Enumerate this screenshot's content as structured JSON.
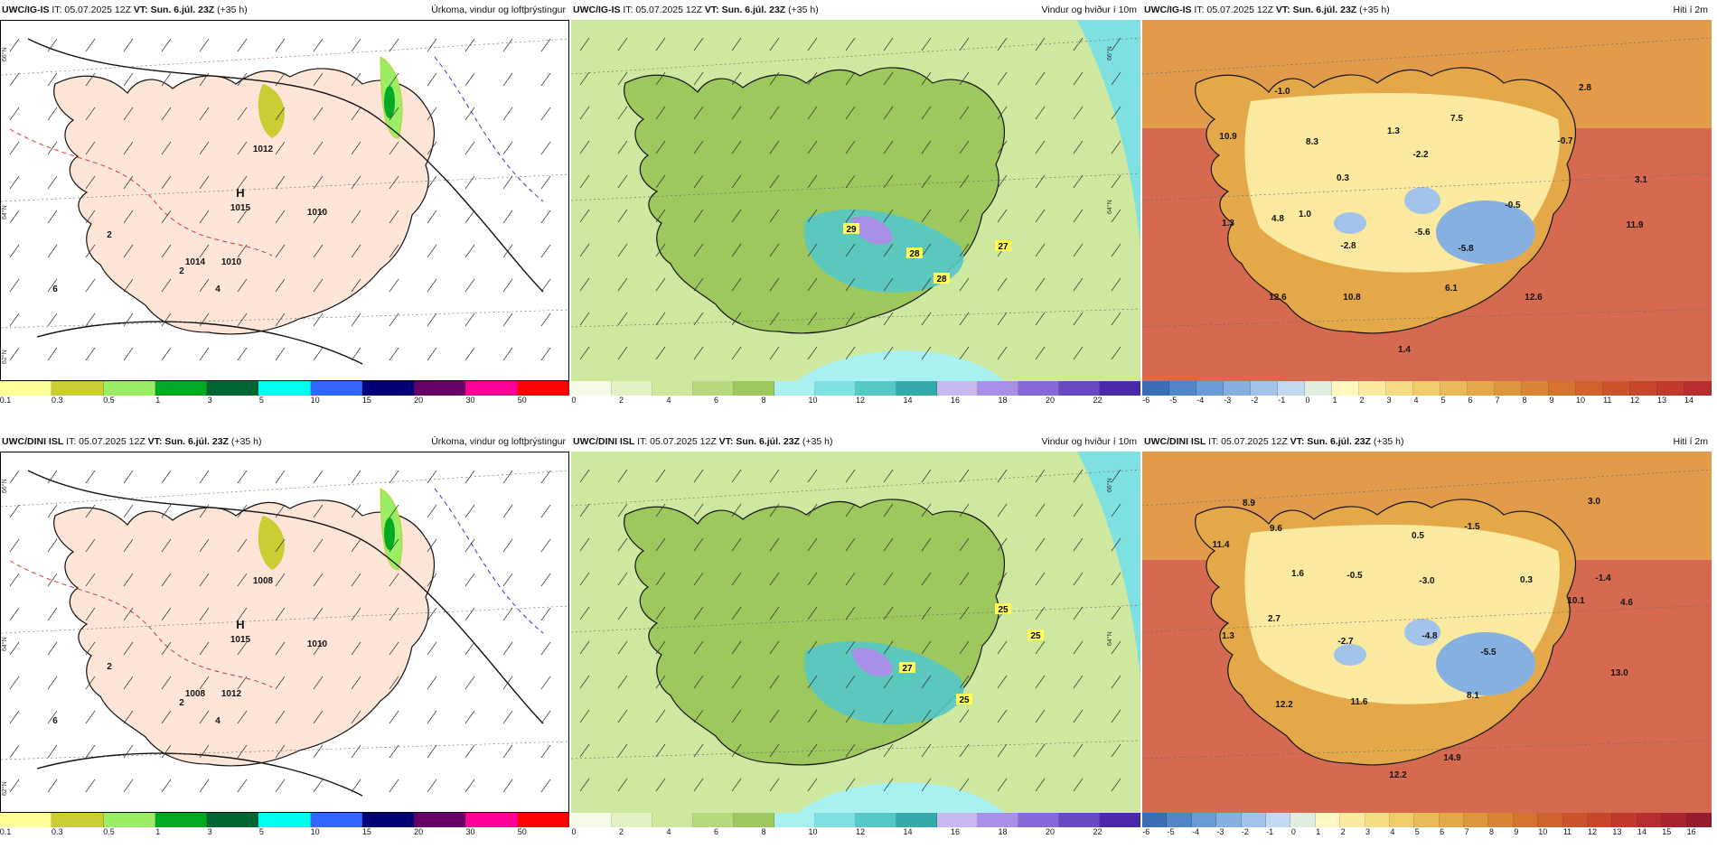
{
  "panels": [
    {
      "model": "UWC/IG-IS",
      "it": "IT: 05.07.2025 12Z",
      "vt_label": "VT:",
      "vt": "Sun. 6.júl. 23Z",
      "lead": "(+35 h)",
      "field": "Úrkoma, vindur og loftþrýstingur",
      "type": "precip",
      "ticks": [
        "0.1",
        "0.3",
        "0.5",
        "1",
        "3",
        "5",
        "10",
        "15",
        "20",
        "30",
        "50"
      ],
      "colors": [
        "#ffff99",
        "#cccc33",
        "#99ee66",
        "#00aa22",
        "#006633",
        "#00ffee",
        "#3366ff",
        "#000077",
        "#660066",
        "#ff0099",
        "#ff0000"
      ],
      "map_labels": [
        "H",
        "1015",
        "1010",
        "1010",
        "1014",
        "1012",
        "2",
        "2",
        "4",
        "6"
      ],
      "grid_labels": [
        "66°N",
        "64°N",
        "62°N"
      ]
    },
    {
      "model": "UWC/IG-IS",
      "it": "IT: 05.07.2025 12Z",
      "vt_label": "VT:",
      "vt": "Sun. 6.júl. 23Z",
      "lead": "(+35 h)",
      "field": "Vindur og hviður í 10m",
      "type": "wind",
      "ticks": [
        "0",
        "2",
        "4",
        "6",
        "8",
        "10",
        "12",
        "14",
        "16",
        "18",
        "20",
        "22"
      ],
      "colors": [
        "#f6fbe6",
        "#e3f2c2",
        "#cfe8a0",
        "#b5d97c",
        "#9cc85d",
        "#a9f0f0",
        "#7ee0e0",
        "#55c8c8",
        "#33a9a9",
        "#c8b8f0",
        "#a890e8",
        "#8868d8",
        "#6a48c4",
        "#4a2aa8"
      ],
      "map_labels": [
        "29",
        "28",
        "28",
        "27"
      ],
      "grid_labels": [
        "66°N",
        "64°N"
      ]
    },
    {
      "model": "UWC/IG-IS",
      "it": "IT: 05.07.2025 12Z",
      "vt_label": "VT:",
      "vt": "Sun. 6.júl. 23Z",
      "lead": "(+35 h)",
      "field": "Hiti í 2m",
      "type": "temp",
      "ticks": [
        "-6",
        "-5",
        "-4",
        "-3",
        "-2",
        "-1",
        "0",
        "1",
        "2",
        "3",
        "4",
        "5",
        "6",
        "7",
        "8",
        "9",
        "10",
        "11",
        "12",
        "13",
        "14"
      ],
      "colors": [
        "#3a6fb8",
        "#5086c8",
        "#6a9bd6",
        "#86b0e0",
        "#a3c4ea",
        "#c2d9f2",
        "#dfeee0",
        "#fff8c0",
        "#fbeaa0",
        "#f6dc84",
        "#f0cc6c",
        "#eaba58",
        "#e4a848",
        "#de963c",
        "#d88434",
        "#d4722e",
        "#d0622c",
        "#cc542c",
        "#c8462c",
        "#c23a2e",
        "#b82e30"
      ],
      "map_labels": [
        "-1.0",
        "2.8",
        "10.9",
        "8.3",
        "1.3",
        "7.5",
        "-2.2",
        "-0.7",
        "0.3",
        "3.1",
        "1.0",
        "-0.5",
        "1.3",
        "4.8",
        "-2.8",
        "-5.6",
        "-5.8",
        "11.9",
        "6.1",
        "12.6",
        "10.8",
        "12.6",
        "1.4"
      ],
      "grid_labels": []
    },
    {
      "model": "UWC/DINI ISL",
      "it": "IT: 05.07.2025 12Z",
      "vt_label": "VT:",
      "vt": "Sun. 6.júl. 23Z",
      "lead": "(+35 h)",
      "field": "Úrkoma, vindur og loftþrýstingur",
      "type": "precip",
      "ticks": [
        "0.1",
        "0.3",
        "0.5",
        "1",
        "3",
        "5",
        "10",
        "15",
        "20",
        "30",
        "50"
      ],
      "colors": [
        "#ffff99",
        "#cccc33",
        "#99ee66",
        "#00aa22",
        "#006633",
        "#00ffee",
        "#3366ff",
        "#000077",
        "#660066",
        "#ff0099",
        "#ff0000"
      ],
      "map_labels": [
        "H",
        "1015",
        "1010",
        "1012",
        "1008",
        "1008",
        "2",
        "2",
        "4",
        "6"
      ],
      "grid_labels": [
        "66°N",
        "64°N",
        "62°N"
      ]
    },
    {
      "model": "UWC/DINI ISL",
      "it": "IT: 05.07.2025 12Z",
      "vt_label": "VT:",
      "vt": "Sun. 6.júl. 23Z",
      "lead": "(+35 h)",
      "field": "Vindur og hviður í 10m",
      "type": "wind",
      "ticks": [
        "0",
        "2",
        "4",
        "6",
        "8",
        "10",
        "12",
        "14",
        "16",
        "18",
        "20",
        "22"
      ],
      "colors": [
        "#f6fbe6",
        "#e3f2c2",
        "#cfe8a0",
        "#b5d97c",
        "#9cc85d",
        "#a9f0f0",
        "#7ee0e0",
        "#55c8c8",
        "#33a9a9",
        "#c8b8f0",
        "#a890e8",
        "#8868d8",
        "#6a48c4",
        "#4a2aa8"
      ],
      "map_labels": [
        "25",
        "25",
        "27",
        "25"
      ],
      "grid_labels": [
        "66°N",
        "64°N"
      ]
    },
    {
      "model": "UWC/DINI ISL",
      "it": "IT: 05.07.2025 12Z",
      "vt_label": "VT:",
      "vt": "Sun. 6.júl. 23Z",
      "lead": "(+35 h)",
      "field": "Hiti í 2m",
      "type": "temp",
      "ticks": [
        "-6",
        "-5",
        "-4",
        "-3",
        "-2",
        "-1",
        "0",
        "1",
        "2",
        "3",
        "4",
        "5",
        "6",
        "7",
        "8",
        "9",
        "10",
        "11",
        "12",
        "13",
        "14",
        "15",
        "16"
      ],
      "colors": [
        "#3a6fb8",
        "#5086c8",
        "#6a9bd6",
        "#86b0e0",
        "#a3c4ea",
        "#c2d9f2",
        "#dfeee0",
        "#fff8c0",
        "#fbeaa0",
        "#f6dc84",
        "#f0cc6c",
        "#eaba58",
        "#e4a848",
        "#de963c",
        "#d88434",
        "#d4722e",
        "#d0622c",
        "#cc542c",
        "#c8462c",
        "#c23a2e",
        "#b82e30",
        "#a82430",
        "#961c30"
      ],
      "map_labels": [
        "8.9",
        "3.0",
        "9.6",
        "0.5",
        "-1.5",
        "11.4",
        "1.6",
        "-0.5",
        "-3.0",
        "0.3",
        "-1.4",
        "4.6",
        "10.1",
        "2.7",
        "1.3",
        "-2.7",
        "-4.8",
        "-5.5",
        "13.0",
        "8.1",
        "12.2",
        "11.6",
        "14.9",
        "12.2"
      ],
      "grid_labels": []
    }
  ]
}
